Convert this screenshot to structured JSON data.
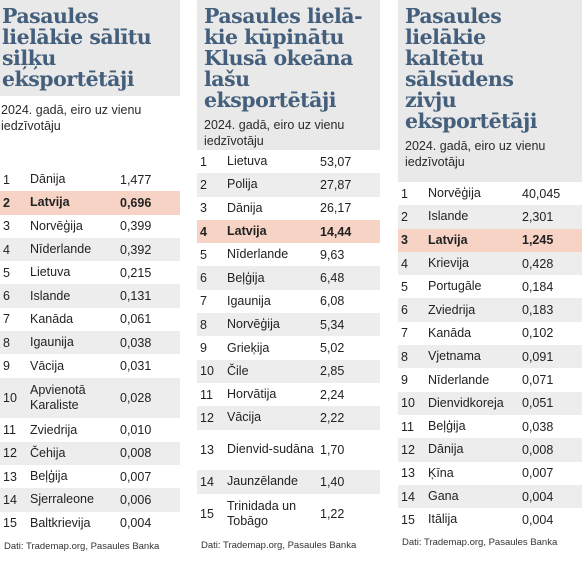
{
  "panels": [
    {
      "title_lines": [
        "Pasaules",
        "lielākie sālītu",
        "siļķu",
        "eksportētāji"
      ],
      "subtitle_lines": [
        "2024. gadā, eiro uz vienu",
        "iedzīvotāju"
      ],
      "rows": [
        {
          "rank": "1",
          "country": "Dānija",
          "value": "1,477"
        },
        {
          "rank": "2",
          "country": "Latvija",
          "value": "0,696",
          "highlight": true
        },
        {
          "rank": "3",
          "country": "Norvēģija",
          "value": "0,399"
        },
        {
          "rank": "4",
          "country": "Nīderlande",
          "value": "0,392"
        },
        {
          "rank": "5",
          "country": "Lietuva",
          "value": "0,215"
        },
        {
          "rank": "6",
          "country": "Islande",
          "value": "0,131"
        },
        {
          "rank": "7",
          "country": "Kanāda",
          "value": "0,061"
        },
        {
          "rank": "8",
          "country": "Igaunija",
          "value": "0,038"
        },
        {
          "rank": "9",
          "country": "Vācija",
          "value": "0,031"
        },
        {
          "rank": "10",
          "country": "Apvienotā Karaliste",
          "value": "0,028"
        },
        {
          "rank": "11",
          "country": "Zviedrija",
          "value": "0,010"
        },
        {
          "rank": "12",
          "country": "Čehija",
          "value": "0,008"
        },
        {
          "rank": "13",
          "country": "Beļģija",
          "value": "0,007"
        },
        {
          "rank": "14",
          "country": "Sjerraleone",
          "value": "0,006"
        },
        {
          "rank": "15",
          "country": "Baltkrievija",
          "value": "0,004"
        }
      ],
      "source": "Dati: Trademap.org, Pasaules Banka"
    },
    {
      "title_lines": [
        "Pasaules lielā-",
        "kie kūpinātu",
        "Klusā okeāna",
        "lašu",
        "eksportētāji"
      ],
      "subtitle_lines": [
        "2024. gadā, eiro uz vienu",
        "iedzīvotāju"
      ],
      "rows": [
        {
          "rank": "1",
          "country": "Lietuva",
          "value": "53,07"
        },
        {
          "rank": "2",
          "country": "Polija",
          "value": "27,87"
        },
        {
          "rank": "3",
          "country": "Dānija",
          "value": "26,17"
        },
        {
          "rank": "4",
          "country": "Latvija",
          "value": "14,44",
          "highlight": true
        },
        {
          "rank": "5",
          "country": "Nīderlande",
          "value": "9,63"
        },
        {
          "rank": "6",
          "country": "Beļģija",
          "value": "6,48"
        },
        {
          "rank": "7",
          "country": "Igaunija",
          "value": "6,08"
        },
        {
          "rank": "8",
          "country": "Norvēģija",
          "value": "5,34"
        },
        {
          "rank": "9",
          "country": "Grieķija",
          "value": "5,02"
        },
        {
          "rank": "10",
          "country": "Čile",
          "value": "2,85"
        },
        {
          "rank": "11",
          "country": "Horvātija",
          "value": "2,24"
        },
        {
          "rank": "12",
          "country": "Vācija",
          "value": "2,22"
        },
        {
          "rank": "13",
          "country": "Dienvid-sudāna",
          "value": "1,70"
        },
        {
          "rank": "14",
          "country": "Jaunzēlande",
          "value": "1,40"
        },
        {
          "rank": "15",
          "country": "Trinidada un Tobāgo",
          "value": "1,22"
        }
      ],
      "source": "Dati: Trademap.org, Pasaules Banka"
    },
    {
      "title_lines": [
        "Pasaules",
        "lielākie",
        "kaltētu",
        "sālsūdens",
        "zivju",
        "eksportētāji"
      ],
      "subtitle_lines": [
        "2024. gadā, eiro uz vienu",
        "iedzīvotāju"
      ],
      "rows": [
        {
          "rank": "1",
          "country": "Norvēģija",
          "value": "40,045"
        },
        {
          "rank": "2",
          "country": "Islande",
          "value": "2,301"
        },
        {
          "rank": "3",
          "country": "Latvija",
          "value": "1,245",
          "highlight": true
        },
        {
          "rank": "4",
          "country": "Krievija",
          "value": "0,428"
        },
        {
          "rank": "5",
          "country": "Portugāle",
          "value": "0,184"
        },
        {
          "rank": "6",
          "country": "Zviedrija",
          "value": "0,183"
        },
        {
          "rank": "7",
          "country": "Kanāda",
          "value": "0,102"
        },
        {
          "rank": "8",
          "country": "Vjetnama",
          "value": "0,091"
        },
        {
          "rank": "9",
          "country": "Nīderlande",
          "value": "0,071"
        },
        {
          "rank": "10",
          "country": "Dienvidkoreja",
          "value": "0,051"
        },
        {
          "rank": "11",
          "country": "Beļģija",
          "value": "0,038"
        },
        {
          "rank": "12",
          "country": "Dānija",
          "value": "0,008"
        },
        {
          "rank": "13",
          "country": "Ķīna",
          "value": "0,007"
        },
        {
          "rank": "14",
          "country": "Gana",
          "value": "0,004"
        },
        {
          "rank": "15",
          "country": "Itālija",
          "value": "0,004"
        }
      ],
      "source": "Dati: Trademap.org, Pasaules Banka"
    }
  ]
}
